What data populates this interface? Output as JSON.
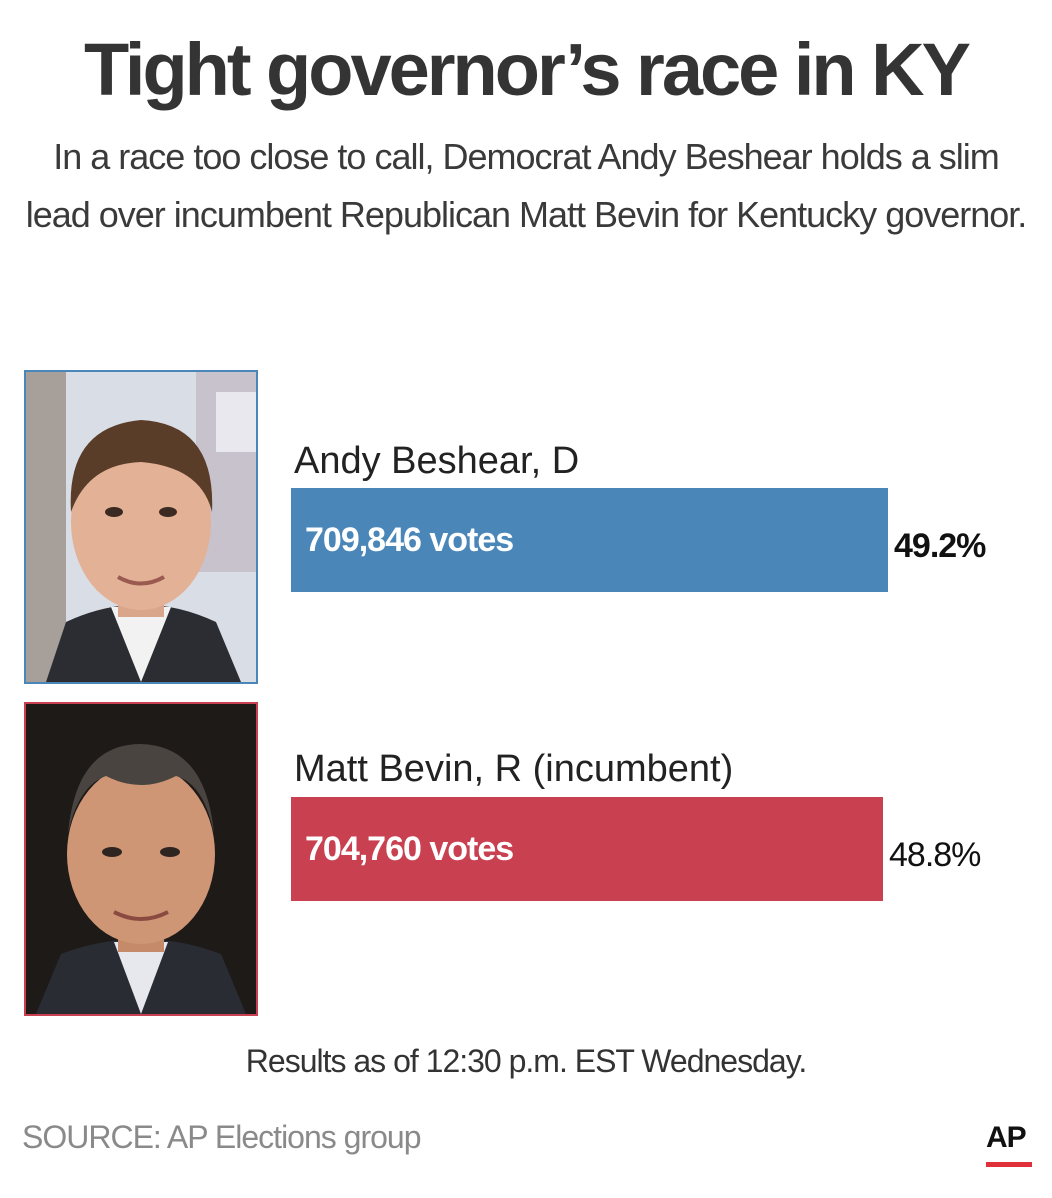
{
  "colors": {
    "democrat": "#4a86b8",
    "republican": "#c94050",
    "title": "#343434",
    "source": "#8a8a8a",
    "ap_accent": "#e0303a"
  },
  "chart_data": {
    "type": "bar",
    "orientation": "horizontal",
    "title": "Tight governor’s race in KY",
    "subtitle": "In a race too close to call, Democrat Andy Beshear holds a slim lead over incumbent Republican Matt Bevin for Kentucky governor.",
    "categories": [
      "Andy Beshear, D",
      "Matt Bevin, R (incumbent)"
    ],
    "votes": [
      709846,
      704760
    ],
    "vote_labels": [
      "709,846 votes",
      "704,760 votes"
    ],
    "values": [
      49.2,
      48.8
    ],
    "value_labels": [
      "49.2%",
      "48.8%"
    ],
    "bar_colors": [
      "#4a86b8",
      "#c94050"
    ],
    "xlim": [
      0,
      50
    ],
    "grid": false,
    "note": "Results as of 12:30 p.m. EST Wednesday.",
    "source": "SOURCE: AP Elections group"
  },
  "candidates": [
    {
      "photo_icon": "candidate-photo-beshear"
    },
    {
      "photo_icon": "candidate-photo-bevin"
    }
  ],
  "logo": {
    "text": "AP"
  }
}
